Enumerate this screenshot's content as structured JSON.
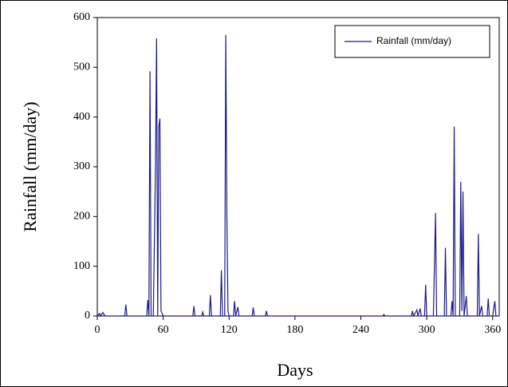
{
  "chart_data": {
    "type": "line",
    "x_label": "Days",
    "y_label": "Rainfall (mm/day)",
    "xlim": [
      0,
      366
    ],
    "xticks": [
      0,
      60,
      120,
      180,
      240,
      300,
      360
    ],
    "ylim": [
      0,
      600
    ],
    "yticks": [
      0,
      100,
      200,
      300,
      400,
      500,
      600
    ],
    "legend": "top-right",
    "x": [
      0,
      2,
      3,
      5,
      7,
      25,
      26,
      27,
      45,
      46,
      47,
      48,
      49,
      51,
      53,
      54,
      55,
      56,
      57,
      58,
      60,
      87,
      88,
      89,
      95,
      96,
      97,
      102,
      103,
      104,
      112,
      113,
      114,
      116,
      117,
      118,
      119,
      120,
      124,
      125,
      126,
      128,
      129,
      141,
      142,
      143,
      153,
      154,
      155,
      260,
      261,
      262,
      286,
      287,
      288,
      290,
      291,
      292,
      294,
      295,
      298,
      299,
      300,
      306,
      307,
      308,
      309,
      316,
      317,
      318,
      322,
      323,
      324,
      325,
      326,
      330,
      331,
      332,
      333,
      334,
      336,
      337,
      346,
      347,
      348,
      350,
      351,
      355,
      356,
      357,
      360,
      362,
      363,
      366
    ],
    "series": [
      {
        "name": "Rainfall (mm/day)",
        "color": "#1a1a8c",
        "values": [
          0,
          5,
          0,
          7,
          0,
          0,
          23,
          0,
          0,
          32,
          0,
          492,
          0,
          0,
          300,
          558,
          0,
          380,
          397,
          10,
          0,
          0,
          20,
          0,
          0,
          8,
          0,
          0,
          42,
          0,
          0,
          92,
          0,
          0,
          565,
          200,
          10,
          0,
          0,
          30,
          0,
          18,
          0,
          0,
          17,
          0,
          0,
          10,
          0,
          0,
          3,
          0,
          0,
          10,
          0,
          8,
          12,
          0,
          15,
          0,
          0,
          63,
          0,
          0,
          100,
          207,
          0,
          0,
          137,
          0,
          0,
          30,
          0,
          381,
          0,
          0,
          270,
          10,
          250,
          0,
          40,
          0,
          0,
          165,
          0,
          20,
          0,
          0,
          35,
          0,
          0,
          30,
          0,
          0
        ]
      }
    ]
  }
}
